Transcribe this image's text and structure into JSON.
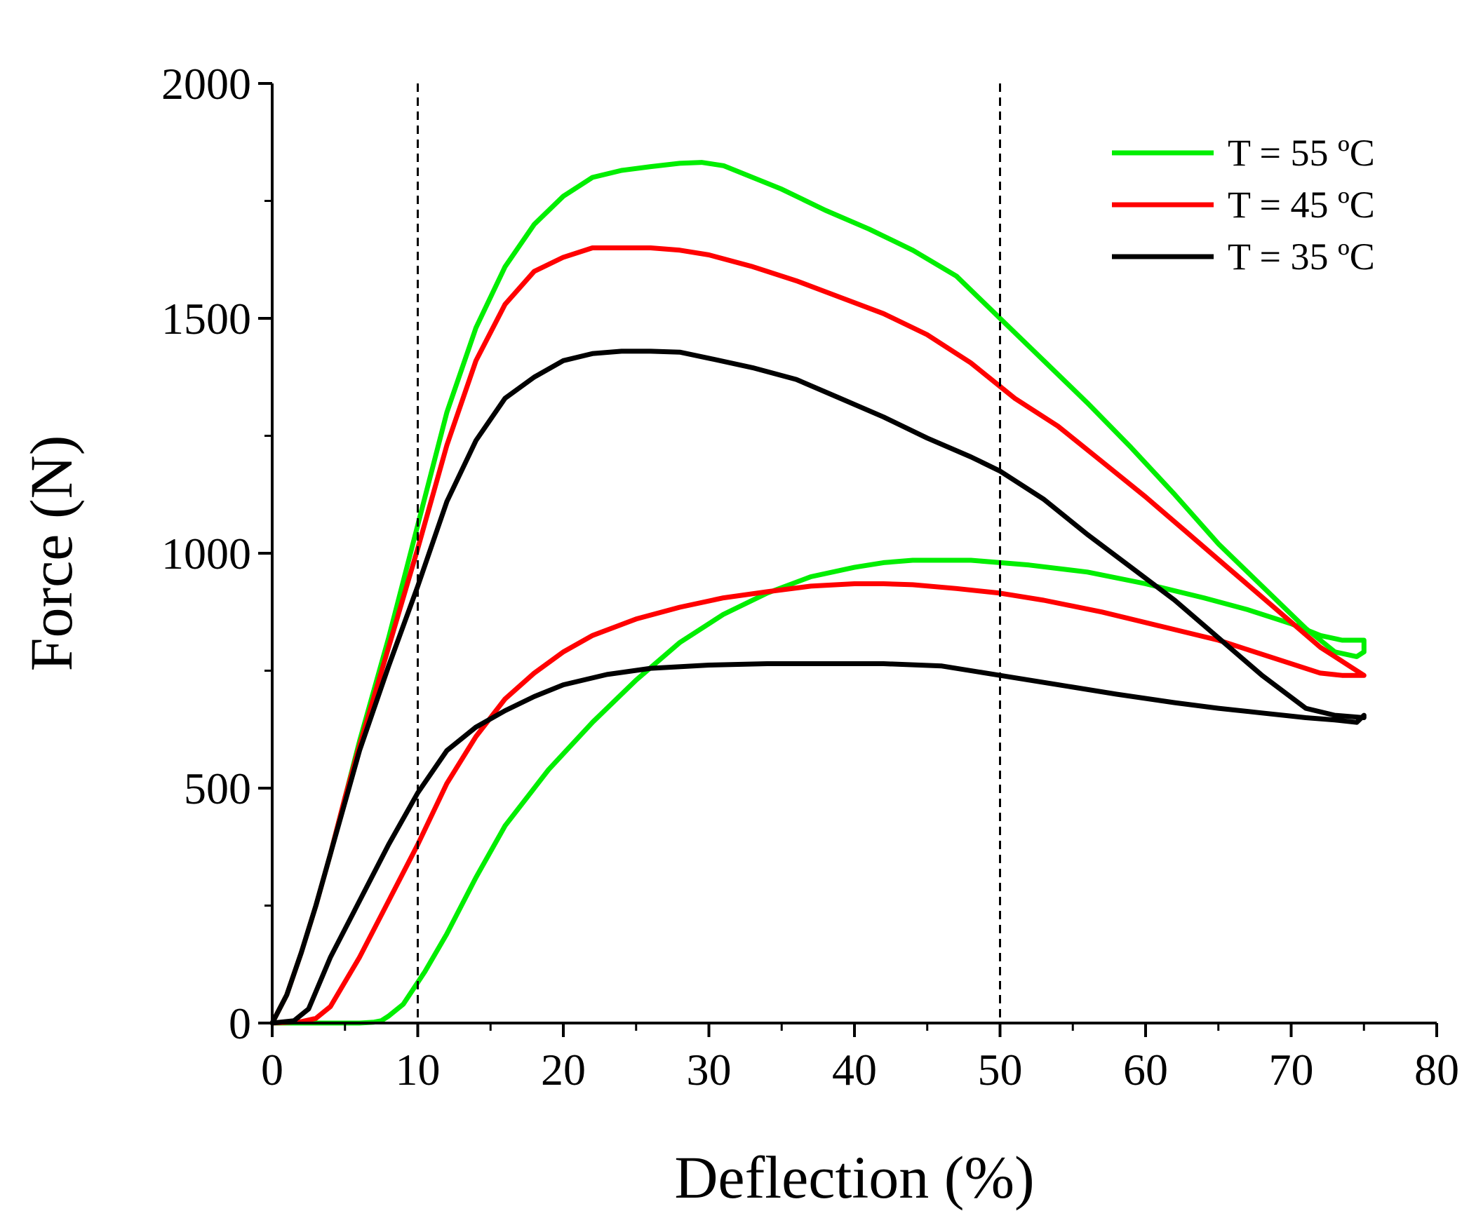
{
  "chart_data": {
    "type": "line",
    "title": "",
    "xlabel": "Deflection (%)",
    "ylabel": "Force (N)",
    "xlim": [
      0,
      80
    ],
    "ylim": [
      0,
      2000
    ],
    "xticks": [
      0,
      10,
      20,
      30,
      40,
      50,
      60,
      70,
      80
    ],
    "yticks": [
      0,
      500,
      1000,
      1500,
      2000
    ],
    "grid": false,
    "legend_position": "top-right",
    "reference_lines_x": [
      10,
      50
    ],
    "series": [
      {
        "name": "T = 55 ºC",
        "color": "#00ee00",
        "x": [
          0,
          1,
          2,
          3,
          4,
          5,
          6,
          8,
          10,
          12,
          14,
          16,
          18,
          20,
          22,
          24,
          26,
          28,
          29.5,
          31,
          33,
          35,
          38,
          41,
          44,
          47,
          50,
          53,
          56,
          59,
          62,
          65,
          68,
          71,
          73,
          74.5,
          75,
          75,
          74.5,
          73.5,
          72,
          70,
          67,
          64,
          60,
          56,
          52,
          48,
          46,
          44,
          42,
          40,
          37,
          34,
          31,
          28,
          25,
          22,
          19,
          16,
          14,
          12,
          10.5,
          9,
          8,
          7.5,
          7,
          6,
          4,
          2,
          0
        ],
        "y": [
          0,
          60,
          150,
          250,
          360,
          480,
          600,
          820,
          1060,
          1300,
          1480,
          1610,
          1700,
          1760,
          1800,
          1815,
          1823,
          1830,
          1832,
          1825,
          1800,
          1775,
          1730,
          1690,
          1645,
          1590,
          1500,
          1410,
          1320,
          1225,
          1125,
          1020,
          930,
          840,
          790,
          780,
          790,
          815,
          815,
          815,
          825,
          850,
          880,
          905,
          935,
          960,
          975,
          985,
          985,
          985,
          980,
          970,
          950,
          915,
          870,
          810,
          730,
          640,
          540,
          420,
          310,
          190,
          110,
          40,
          15,
          5,
          2,
          0,
          0,
          0,
          0
        ]
      },
      {
        "name": "T = 45 ºC",
        "color": "#ff0000",
        "x": [
          0,
          1,
          2,
          3,
          4,
          5,
          6,
          8,
          10,
          12,
          14,
          16,
          18,
          20,
          22,
          24,
          26,
          28,
          30,
          33,
          36,
          39,
          42,
          45,
          48,
          51,
          54,
          57,
          60,
          63,
          66,
          69,
          72,
          74,
          75,
          75,
          74.5,
          73.5,
          72,
          69,
          65,
          61,
          57,
          53,
          50,
          47,
          44,
          42,
          40,
          37,
          34,
          31,
          28,
          25,
          22,
          20,
          18,
          16,
          14,
          12,
          10,
          8,
          6,
          4,
          3,
          2,
          0
        ],
        "y": [
          0,
          60,
          150,
          250,
          360,
          480,
          590,
          800,
          1010,
          1230,
          1410,
          1530,
          1600,
          1630,
          1650,
          1650,
          1650,
          1645,
          1635,
          1610,
          1580,
          1545,
          1510,
          1465,
          1405,
          1330,
          1270,
          1195,
          1120,
          1040,
          960,
          880,
          800,
          760,
          740,
          740,
          740,
          740,
          745,
          775,
          815,
          845,
          875,
          900,
          915,
          925,
          933,
          935,
          935,
          930,
          918,
          905,
          885,
          860,
          825,
          790,
          745,
          690,
          610,
          510,
          380,
          260,
          140,
          35,
          10,
          3,
          0
        ]
      },
      {
        "name": "T = 35 ºC",
        "color": "#000000",
        "x": [
          0,
          1,
          2,
          3,
          4,
          5,
          6,
          8,
          10,
          12,
          14,
          16,
          18,
          20,
          22,
          24,
          26,
          28,
          30,
          33,
          36,
          39,
          42,
          45,
          48,
          50,
          53,
          56,
          59,
          62,
          65,
          68,
          71,
          73,
          75,
          75,
          74.5,
          73,
          71,
          68,
          65,
          62,
          58,
          54,
          50,
          46,
          42,
          38,
          34,
          30,
          26,
          23,
          20,
          18,
          16,
          14,
          12,
          10,
          8,
          6,
          4,
          2.5,
          1.5,
          0
        ],
        "y": [
          0,
          60,
          150,
          250,
          360,
          470,
          580,
          760,
          930,
          1110,
          1240,
          1330,
          1375,
          1410,
          1425,
          1430,
          1430,
          1428,
          1415,
          1395,
          1370,
          1330,
          1290,
          1245,
          1205,
          1175,
          1115,
          1040,
          970,
          900,
          820,
          740,
          670,
          655,
          650,
          655,
          640,
          645,
          650,
          660,
          670,
          682,
          700,
          720,
          740,
          760,
          765,
          765,
          765,
          762,
          755,
          742,
          720,
          695,
          665,
          630,
          580,
          490,
          380,
          260,
          140,
          30,
          5,
          0
        ]
      }
    ]
  }
}
